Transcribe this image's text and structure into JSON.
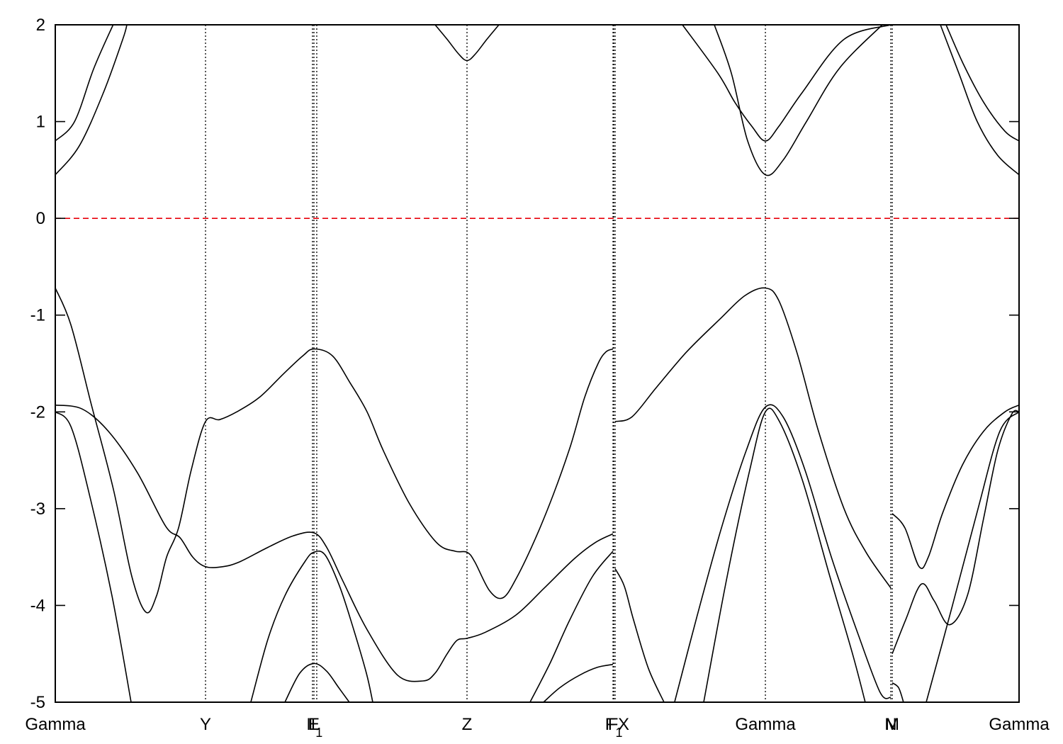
{
  "chart_data": {
    "type": "line",
    "title": "",
    "xlabel": "",
    "ylabel": "",
    "ylim": [
      -5,
      2
    ],
    "xlim": [
      0,
      1
    ],
    "grid": false,
    "legend": "none",
    "yticks": [
      {
        "value": 2,
        "label": "2"
      },
      {
        "value": 1,
        "label": "1"
      },
      {
        "value": 0,
        "label": "0"
      },
      {
        "value": -1,
        "label": "-1"
      },
      {
        "value": -2,
        "label": "-2"
      },
      {
        "value": -3,
        "label": "-3"
      },
      {
        "value": -4,
        "label": "-4"
      },
      {
        "value": -5,
        "label": "-5"
      }
    ],
    "kpoints": [
      {
        "x": 0.0,
        "label": "Gamma",
        "line": false
      },
      {
        "x": 0.1559,
        "label": "Y",
        "line": true
      },
      {
        "x": 0.2669,
        "label": "I",
        "line": true
      },
      {
        "x": 0.2684,
        "label": "E",
        "line": true
      },
      {
        "x": 0.2713,
        "label": "I1",
        "line": true
      },
      {
        "x": 0.4272,
        "label": "Z",
        "line": true
      },
      {
        "x": 0.5787,
        "label": "F",
        "line": true
      },
      {
        "x": 0.5795,
        "label": "F1",
        "line": true
      },
      {
        "x": 0.5809,
        "label": "X",
        "line": true
      },
      {
        "x": 0.7368,
        "label": "Gamma",
        "line": true
      },
      {
        "x": 0.8669,
        "label": "N",
        "line": true
      },
      {
        "x": 0.8684,
        "label": "M",
        "line": true
      },
      {
        "x": 1.0,
        "label": "Gamma",
        "line": false
      }
    ],
    "reference_line": {
      "y": 0,
      "color": "#e8000b",
      "style": "dashed"
    },
    "band_color": "#000000",
    "series": [
      {
        "x": [
          0,
          0.02,
          0.04,
          0.06,
          0.0647
        ],
        "y": [
          0.8,
          1.0,
          1.55,
          2.0,
          2.1
        ]
      },
      {
        "x": [
          0,
          0.025,
          0.05,
          0.07,
          0.0743
        ],
        "y": [
          0.45,
          0.75,
          1.3,
          1.85,
          2.0
        ]
      },
      {
        "x": [
          0.3941,
          0.4066,
          0.4184,
          0.4272,
          0.436,
          0.4478,
          0.4603
        ],
        "y": [
          2.0,
          1.85,
          1.7,
          1.63,
          1.7,
          1.85,
          2.0
        ]
      },
      {
        "x": [
          0.6507,
          0.6875,
          0.7051,
          0.7228,
          0.7368,
          0.7507,
          0.775,
          0.8184,
          0.8669
        ],
        "y": [
          2.0,
          1.5,
          1.2,
          0.95,
          0.8,
          0.95,
          1.3,
          1.85,
          2.0
        ]
      },
      {
        "x": [
          0.6838,
          0.7015,
          0.7184,
          0.7368,
          0.7551,
          0.7794,
          0.8135,
          0.8581
        ],
        "y": [
          2.0,
          1.5,
          0.8,
          0.45,
          0.6,
          1.0,
          1.55,
          2.0
        ]
      },
      {
        "x": [
          0.9243,
          0.9419,
          0.9632,
          0.9853,
          1.0
        ],
        "y": [
          2.0,
          1.6,
          1.2,
          0.9,
          0.8
        ]
      },
      {
        "x": [
          0.9184,
          0.9375,
          0.9566,
          0.9779,
          1.0
        ],
        "y": [
          2.0,
          1.5,
          1.0,
          0.65,
          0.45
        ]
      },
      {
        "x": [
          0,
          0.0162,
          0.0368,
          0.0603,
          0.0794,
          0.0941,
          0.1051,
          0.1155,
          0.1279,
          0.1411,
          0.1559,
          0.1706,
          0.1882,
          0.2118,
          0.2375,
          0.2569,
          0.2684,
          0.2875,
          0.3059,
          0.3235,
          0.3404,
          0.3676,
          0.3956,
          0.4147,
          0.4272,
          0.4353,
          0.4507,
          0.4647,
          0.4794,
          0.4985,
          0.5169,
          0.5346,
          0.5493,
          0.5632,
          0.5714,
          0.5787
        ],
        "y": [
          -0.72,
          -1.1,
          -1.9,
          -2.8,
          -3.7,
          -4.07,
          -3.9,
          -3.5,
          -3.2,
          -2.6,
          -2.1,
          -2.08,
          -2.0,
          -1.85,
          -1.6,
          -1.42,
          -1.35,
          -1.42,
          -1.7,
          -2.0,
          -2.4,
          -2.95,
          -3.35,
          -3.44,
          -3.45,
          -3.55,
          -3.85,
          -3.92,
          -3.7,
          -3.3,
          -2.85,
          -2.35,
          -1.85,
          -1.5,
          -1.38,
          -1.35
        ]
      },
      {
        "x": [
          0,
          0.0279,
          0.0551,
          0.0853,
          0.1144,
          0.1294,
          0.1426,
          0.1559,
          0.1735,
          0.1912,
          0.2206,
          0.2471,
          0.2684,
          0.2816,
          0.2985,
          0.3235,
          0.3551,
          0.3816,
          0.3941,
          0.4066,
          0.4169,
          0.4272,
          0.4456,
          0.4779,
          0.5074,
          0.5382,
          0.5603,
          0.5787
        ],
        "y": [
          -1.93,
          -1.97,
          -2.2,
          -2.63,
          -3.18,
          -3.3,
          -3.5,
          -3.6,
          -3.6,
          -3.55,
          -3.4,
          -3.28,
          -3.25,
          -3.4,
          -3.75,
          -4.25,
          -4.72,
          -4.78,
          -4.7,
          -4.5,
          -4.36,
          -4.34,
          -4.28,
          -4.1,
          -3.82,
          -3.52,
          -3.35,
          -3.26
        ]
      },
      {
        "x": [
          0,
          0.0162,
          0.0353,
          0.0588,
          0.0787
        ],
        "y": [
          -2.0,
          -2.15,
          -2.85,
          -3.9,
          -5.0
        ]
      },
      {
        "x": [
          0.2029,
          0.2206,
          0.2382,
          0.2588,
          0.2684,
          0.2801,
          0.2949,
          0.3081,
          0.3228,
          0.3294
        ],
        "y": [
          -5.0,
          -4.35,
          -3.9,
          -3.55,
          -3.45,
          -3.48,
          -3.8,
          -4.2,
          -4.7,
          -5.0
        ]
      },
      {
        "x": [
          0.2382,
          0.2537,
          0.2684,
          0.2816,
          0.2941,
          0.3051
        ],
        "y": [
          -5.0,
          -4.7,
          -4.6,
          -4.68,
          -4.85,
          -5.0
        ]
      },
      {
        "x": [
          0.5066,
          0.5235,
          0.5441,
          0.5625,
          0.5787
        ],
        "y": [
          -5.0,
          -4.85,
          -4.72,
          -4.64,
          -4.61
        ]
      },
      {
        "x": [
          0.4926,
          0.5132,
          0.5338,
          0.5574,
          0.5787
        ],
        "y": [
          -5.0,
          -4.6,
          -4.15,
          -3.7,
          -3.44
        ]
      },
      {
        "x": [
          0.5809,
          0.5985,
          0.6235,
          0.6551,
          0.6897,
          0.7154,
          0.7368,
          0.7507,
          0.7699,
          0.7919,
          0.8184,
          0.8412,
          0.8669
        ],
        "y": [
          -2.1,
          -2.05,
          -1.75,
          -1.38,
          -1.04,
          -0.8,
          -0.72,
          -0.85,
          -1.4,
          -2.2,
          -3.0,
          -3.45,
          -3.82
        ]
      },
      {
        "x": [
          0.5809,
          0.5904,
          0.6,
          0.6154,
          0.6316
        ],
        "y": [
          -3.62,
          -3.8,
          -4.15,
          -4.65,
          -5.0
        ]
      },
      {
        "x": [
          0.6426,
          0.6662,
          0.6912,
          0.7169,
          0.7368,
          0.7551,
          0.7779,
          0.8052,
          0.8331,
          0.8559,
          0.8669
        ],
        "y": [
          -5.0,
          -4.1,
          -3.2,
          -2.4,
          -1.95,
          -2.05,
          -2.6,
          -3.5,
          -4.3,
          -4.9,
          -4.95
        ]
      },
      {
        "x": [
          0.6728,
          0.6971,
          0.7206,
          0.7368,
          0.7514,
          0.775,
          0.8037,
          0.8272,
          0.8404
        ],
        "y": [
          -5.0,
          -3.7,
          -2.6,
          -2.0,
          -2.1,
          -2.7,
          -3.7,
          -4.5,
          -5.0
        ]
      },
      {
        "x": [
          0.8684,
          0.8816,
          0.8963,
          0.9059,
          0.9205,
          0.9412,
          0.9632,
          0.9853,
          1.0
        ],
        "y": [
          -3.05,
          -3.2,
          -3.6,
          -3.5,
          -3.05,
          -2.55,
          -2.2,
          -2.0,
          -1.93
        ]
      },
      {
        "x": [
          0.8684,
          0.8823,
          0.8985,
          0.9118,
          0.9279,
          0.9463,
          0.9632,
          0.9779,
          0.9926,
          1.0
        ],
        "y": [
          -4.5,
          -4.15,
          -3.78,
          -3.95,
          -4.2,
          -3.9,
          -3.1,
          -2.4,
          -2.02,
          -2.0
        ]
      },
      {
        "x": [
          0.8684,
          0.875,
          0.8801
        ],
        "y": [
          -4.8,
          -4.85,
          -5.0
        ]
      },
      {
        "x": [
          0.9037,
          0.9309,
          0.9574,
          0.9801,
          1.0
        ],
        "y": [
          -5.0,
          -4.0,
          -3.0,
          -2.2,
          -2.0
        ]
      }
    ]
  }
}
